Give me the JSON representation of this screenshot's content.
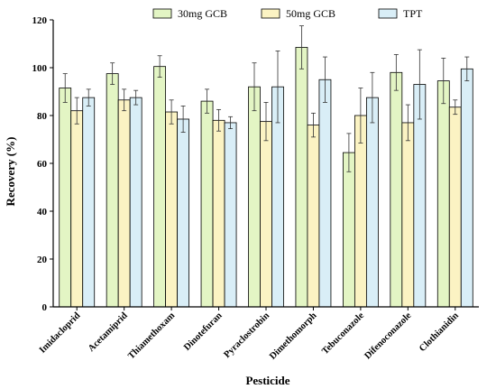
{
  "chart_data": {
    "type": "bar",
    "title": "",
    "xlabel": "Pesticide",
    "ylabel": "Recovery (%)",
    "ylim": [
      0,
      120
    ],
    "yticks": [
      0,
      20,
      40,
      60,
      80,
      100,
      120
    ],
    "grid": false,
    "legend_position": "top",
    "categories": [
      "Imidacloprid",
      "Acetamiprid",
      "Thiamethoxam",
      "Dinotefuran",
      "Pyraclostrobin",
      "Dimethomorph",
      "Tebuconazole",
      "Difenoconazole",
      "Clothianidin"
    ],
    "series": [
      {
        "name": "30mg GCB",
        "color": "#e3f5c4",
        "values": [
          91.5,
          97.5,
          100.5,
          86,
          92,
          108.5,
          64.5,
          98,
          94.5
        ],
        "errors": [
          6,
          4.5,
          4.5,
          5,
          10,
          9,
          8,
          7.5,
          9.5
        ]
      },
      {
        "name": "50mg GCB",
        "color": "#fbf3c3",
        "values": [
          82,
          86.5,
          81.5,
          78,
          77.5,
          76,
          80,
          77,
          83.5
        ],
        "errors": [
          5.5,
          4.5,
          5,
          4.5,
          8,
          5,
          11.5,
          7.5,
          3
        ]
      },
      {
        "name": "TPT",
        "color": "#d9eef7",
        "values": [
          87.5,
          87.5,
          78.5,
          77,
          92,
          95,
          87.5,
          93,
          99.5
        ],
        "errors": [
          3.5,
          3,
          5.5,
          2.5,
          15,
          9.5,
          10.5,
          14.5,
          5
        ]
      }
    ]
  }
}
